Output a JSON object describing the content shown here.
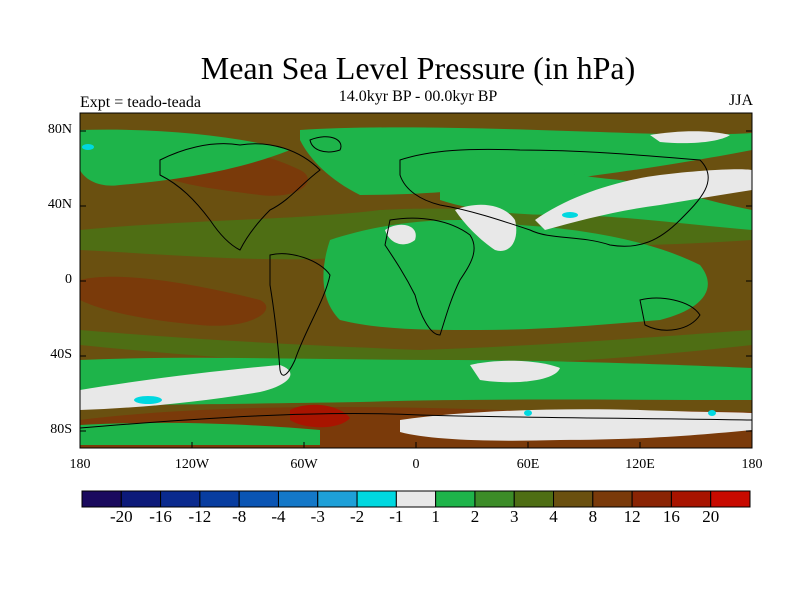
{
  "title": "Mean Sea Level Pressure (in hPa)",
  "subtitle": "14.0kyr BP - 00.0kyr BP",
  "left_label": "Expt = teado-teada",
  "right_label": "JJA",
  "y_ticks": [
    "80N",
    "40N",
    "0",
    "40S",
    "80S"
  ],
  "x_ticks": [
    "180",
    "120W",
    "60W",
    "0",
    "60E",
    "120E",
    "180"
  ],
  "colorbar": {
    "colors": [
      "#1a0a5e",
      "#0c1a7a",
      "#0a2a8e",
      "#083da0",
      "#0a55b4",
      "#1478c8",
      "#1ea0d8",
      "#00d8e0",
      "#e8e8e8",
      "#1eb44a",
      "#3c8c28",
      "#4e6e14",
      "#6a5010",
      "#7a3a0a",
      "#8a2404",
      "#a81400",
      "#c80a00"
    ],
    "labels": [
      "-20",
      "-16",
      "-12",
      "-8",
      "-4",
      "-3",
      "-2",
      "-1",
      "1",
      "2",
      "3",
      "4",
      "8",
      "12",
      "16",
      "20"
    ]
  },
  "chart_data": {
    "type": "heatmap",
    "title": "Mean Sea Level Pressure (in hPa)",
    "subtitle": "14.0kyr BP - 00.0kyr BP",
    "experiment": "Expt = teado-teada",
    "season": "JJA",
    "x_range": [
      -180,
      180
    ],
    "y_range": [
      -90,
      90
    ],
    "levels": [
      -20,
      -16,
      -12,
      -8,
      -4,
      -3,
      -2,
      -1,
      1,
      2,
      3,
      4,
      8,
      12,
      16,
      20
    ]
  }
}
